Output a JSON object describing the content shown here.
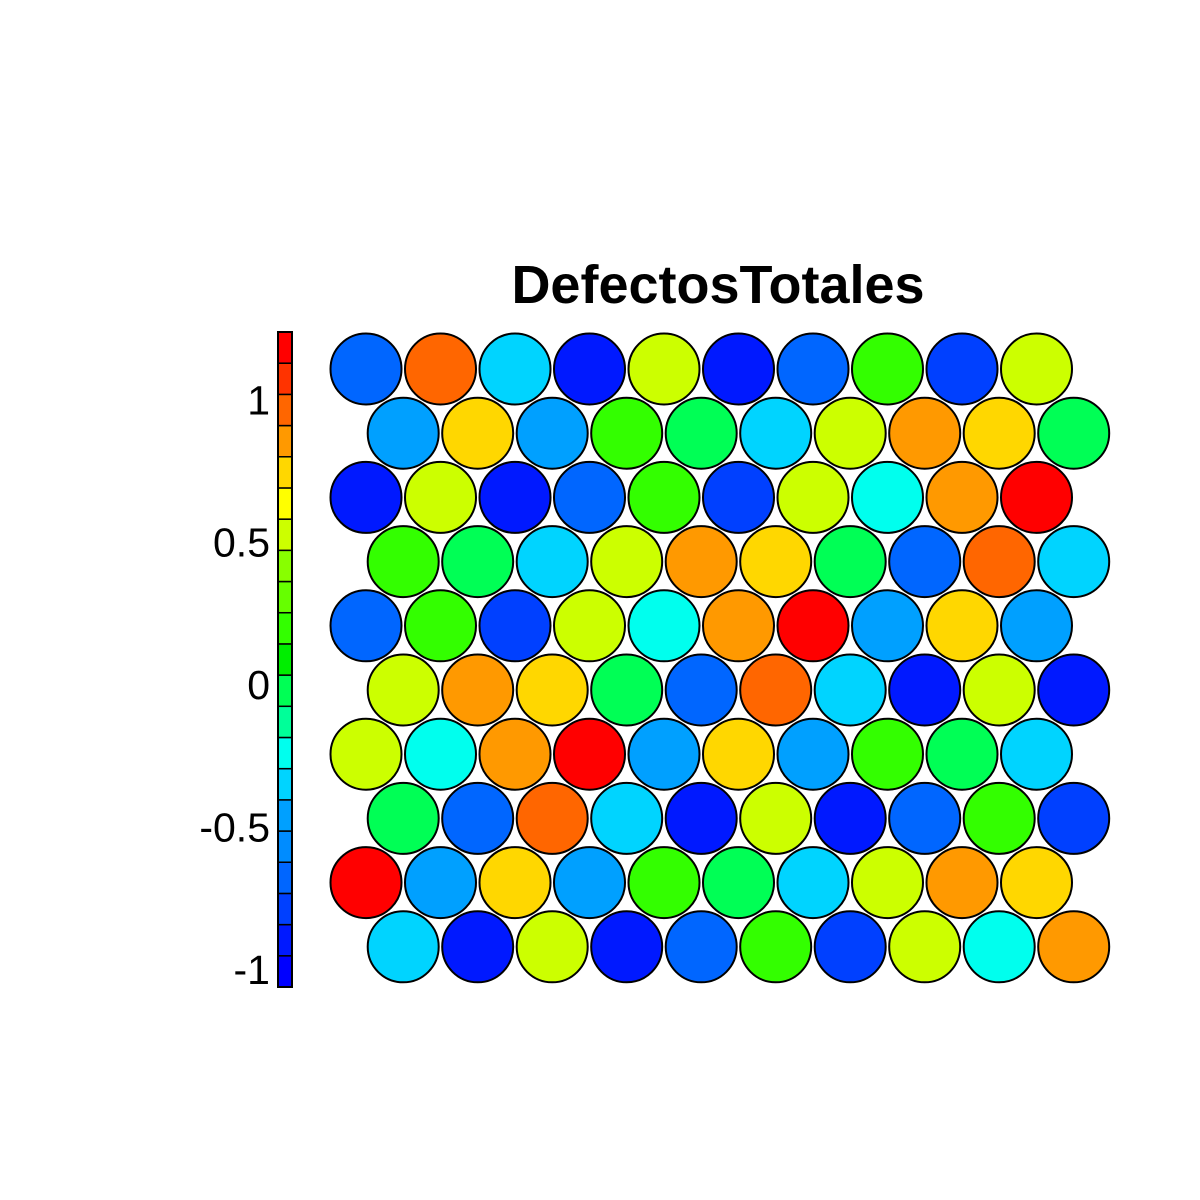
{
  "chart_data": {
    "type": "heatmap",
    "subtype": "som-hexagonal-grid",
    "title": "DefectosTotales",
    "xlabel": "",
    "ylabel": "",
    "grid": false,
    "legend": "colorbar-left",
    "grid_shape": {
      "rows": 10,
      "cols": 10,
      "odd_rows_offset": true
    },
    "value_range": [
      -1.06,
      1.24
    ],
    "colorbar": {
      "ticks": [
        1,
        0.5,
        0,
        -0.5,
        -1
      ],
      "tick_labels": [
        "1",
        "0.5",
        "0",
        "-0.5",
        "-1"
      ],
      "levels": 20,
      "colors": [
        "#0000ff",
        "#0019ff",
        "#0040ff",
        "#0066ff",
        "#008cff",
        "#00a0ff",
        "#00d4ff",
        "#00ffee",
        "#00ff99",
        "#00ff55",
        "#00ee00",
        "#33ff00",
        "#66ff00",
        "#88ff00",
        "#ccff00",
        "#ffff00",
        "#ffd700",
        "#ff9900",
        "#ff6600",
        "#ff3300",
        "#ff0000"
      ]
    },
    "cells": [
      [
        -0.7,
        1.0,
        -0.4,
        -1.0,
        0.6,
        -1.0,
        -0.7,
        0.2,
        -0.8,
        0.6
      ],
      [
        -0.5,
        0.75,
        -0.5,
        0.2,
        0.0,
        -0.4,
        0.6,
        0.9,
        0.75,
        0.0
      ],
      [
        -1.0,
        0.6,
        -1.0,
        -0.7,
        0.2,
        -0.8,
        0.6,
        -0.2,
        0.9,
        1.2
      ],
      [
        0.2,
        0.0,
        -0.4,
        0.6,
        0.9,
        0.75,
        0.0,
        -0.7,
        1.0,
        -0.4
      ],
      [
        -0.7,
        0.2,
        -0.8,
        0.6,
        -0.2,
        0.9,
        1.2,
        -0.5,
        0.75,
        -0.5
      ],
      [
        0.6,
        0.9,
        0.75,
        0.0,
        -0.7,
        1.0,
        -0.4,
        -1.0,
        0.6,
        -1.0
      ],
      [
        0.6,
        -0.2,
        0.9,
        1.2,
        -0.5,
        0.75,
        -0.5,
        0.2,
        0.0,
        -0.4
      ],
      [
        0.0,
        -0.7,
        1.0,
        -0.4,
        -1.0,
        0.6,
        -1.0,
        -0.7,
        0.2,
        -0.8
      ],
      [
        1.2,
        -0.5,
        0.75,
        -0.5,
        0.2,
        0.0,
        -0.4,
        0.6,
        0.9,
        0.75
      ],
      [
        -0.4,
        -1.0,
        0.6,
        -1.0,
        -0.7,
        0.2,
        -0.8,
        0.6,
        -0.2,
        0.9
      ]
    ]
  }
}
